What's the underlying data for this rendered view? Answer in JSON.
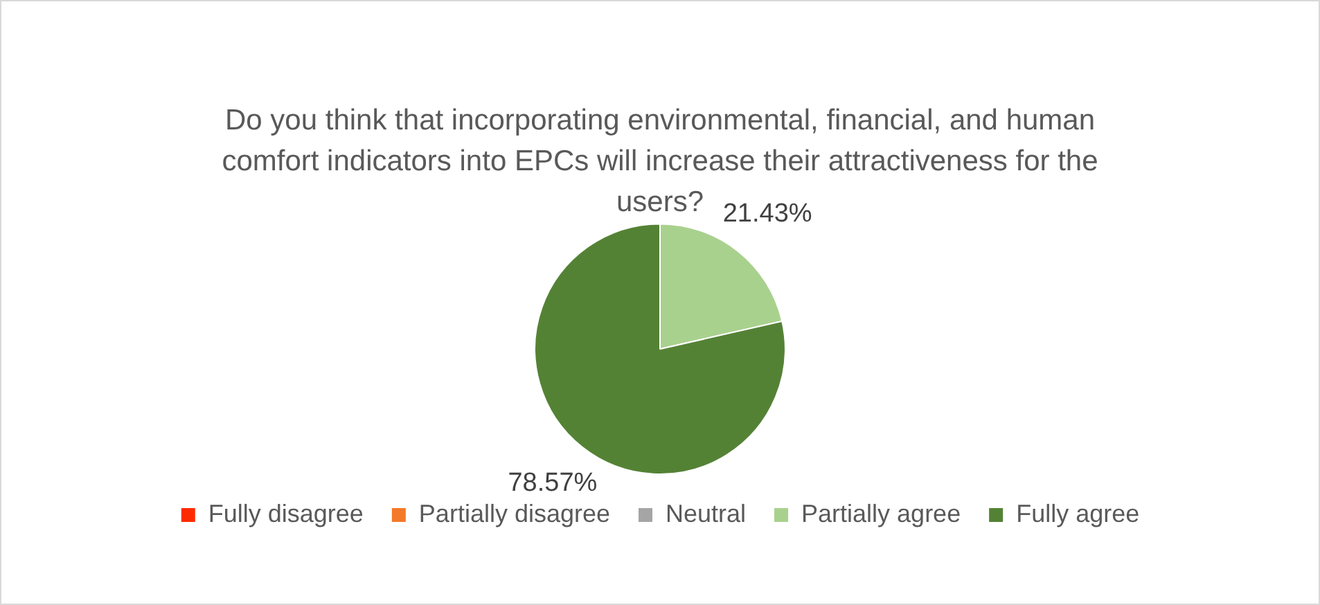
{
  "chart_data": {
    "type": "pie",
    "title": "Do you think that incorporating environmental, financial, and human comfort indicators into EPCs will increase their attractiveness for the users?",
    "categories": [
      "Fully disagree",
      "Partially disagree",
      "Neutral",
      "Partially agree",
      "Fully agree"
    ],
    "values": [
      0,
      0,
      0,
      21.43,
      78.57
    ],
    "colors": [
      "#ff2b00",
      "#f4792a",
      "#a5a5a5",
      "#a9d18e",
      "#548235"
    ],
    "value_labels": [
      null,
      null,
      null,
      "21.43%",
      "78.57%"
    ],
    "legend": "bottom"
  }
}
